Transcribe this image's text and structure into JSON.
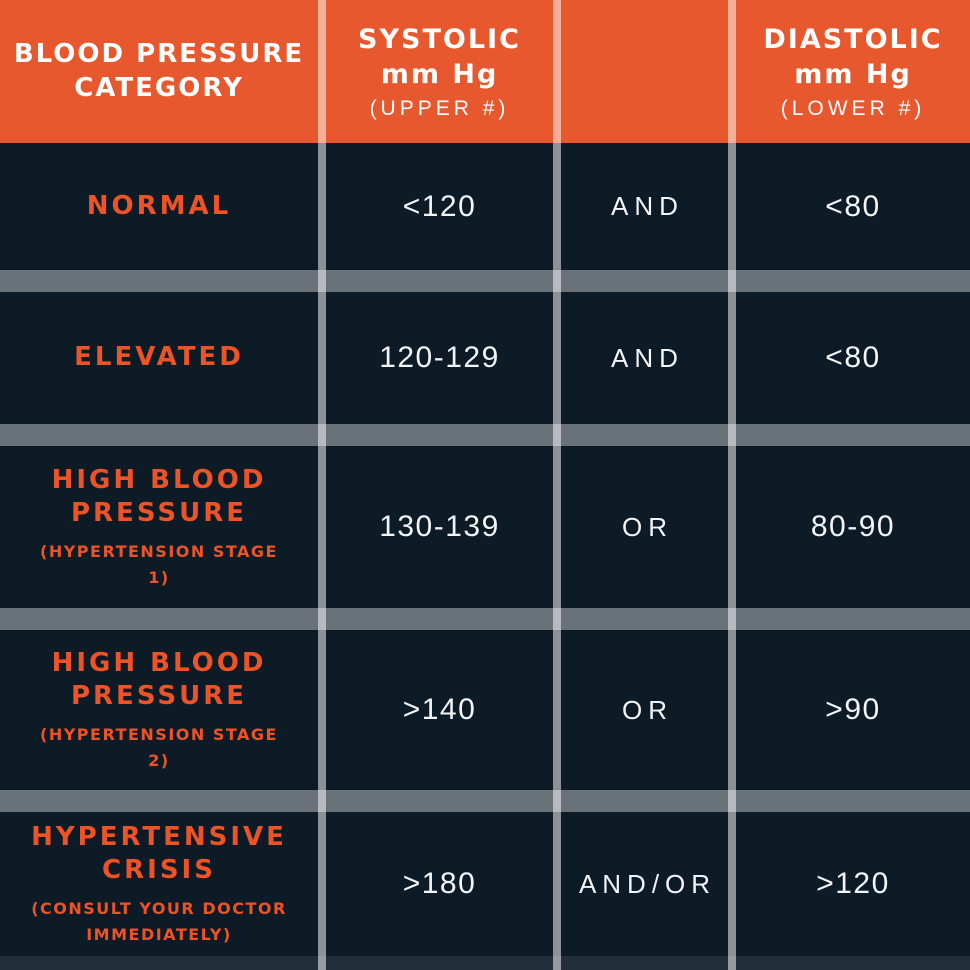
{
  "palette": {
    "header_bg": "#e8582f",
    "row_bg": "#0d1b27",
    "accent_text": "#ee5326",
    "value_text": "#f2f4f6"
  },
  "header": {
    "category": "BLOOD PRESSURE CATEGORY",
    "systolic_title": "SYSTOLIC",
    "systolic_unit": "mm Hg",
    "systolic_note": "(UPPER #)",
    "connector_title": "",
    "diastolic_title": "DIASTOLIC",
    "diastolic_unit": "mm Hg",
    "diastolic_note": "(LOWER #)"
  },
  "rows": [
    {
      "category": "NORMAL",
      "subtext": "",
      "systolic": "<120",
      "logic": "AND",
      "diastolic": "<80"
    },
    {
      "category": "ELEVATED",
      "subtext": "",
      "systolic": "120-129",
      "logic": "AND",
      "diastolic": "<80"
    },
    {
      "category": "HIGH BLOOD PRESSURE",
      "subtext": "(HYPERTENSION STAGE 1)",
      "systolic": "130-139",
      "logic": "OR",
      "diastolic": "80-90"
    },
    {
      "category": "HIGH BLOOD PRESSURE",
      "subtext": "(HYPERTENSION STAGE 2)",
      "systolic": ">140",
      "logic": "OR",
      "diastolic": ">90"
    },
    {
      "category": "HYPERTENSIVE CRISIS",
      "subtext": "(CONSULT YOUR DOCTOR IMMEDIATELY)",
      "systolic": ">180",
      "logic": "AND/OR",
      "diastolic": ">120"
    }
  ],
  "chart_data": {
    "type": "table",
    "title": "Blood Pressure Categories",
    "columns": [
      "BLOOD PRESSURE CATEGORY",
      "SYSTOLIC mm Hg (UPPER #)",
      "",
      "DIASTOLIC mm Hg (LOWER #)"
    ],
    "rows": [
      [
        "NORMAL",
        "<120",
        "AND",
        "<80"
      ],
      [
        "ELEVATED",
        "120-129",
        "AND",
        "<80"
      ],
      [
        "HIGH BLOOD PRESSURE (HYPERTENSION STAGE 1)",
        "130-139",
        "OR",
        "80-90"
      ],
      [
        "HIGH BLOOD PRESSURE (HYPERTENSION STAGE 2)",
        ">140",
        "OR",
        ">90"
      ],
      [
        "HYPERTENSIVE CRISIS (CONSULT YOUR DOCTOR IMMEDIATELY)",
        ">180",
        "AND/OR",
        ">120"
      ]
    ],
    "layout": {
      "header_bg": "#e8582f",
      "row_bg": "#0d1b27",
      "category_text_color": "#ee5326",
      "value_text_color": "#f2f4f6",
      "grid": "translucent white separators between rows and columns"
    }
  }
}
